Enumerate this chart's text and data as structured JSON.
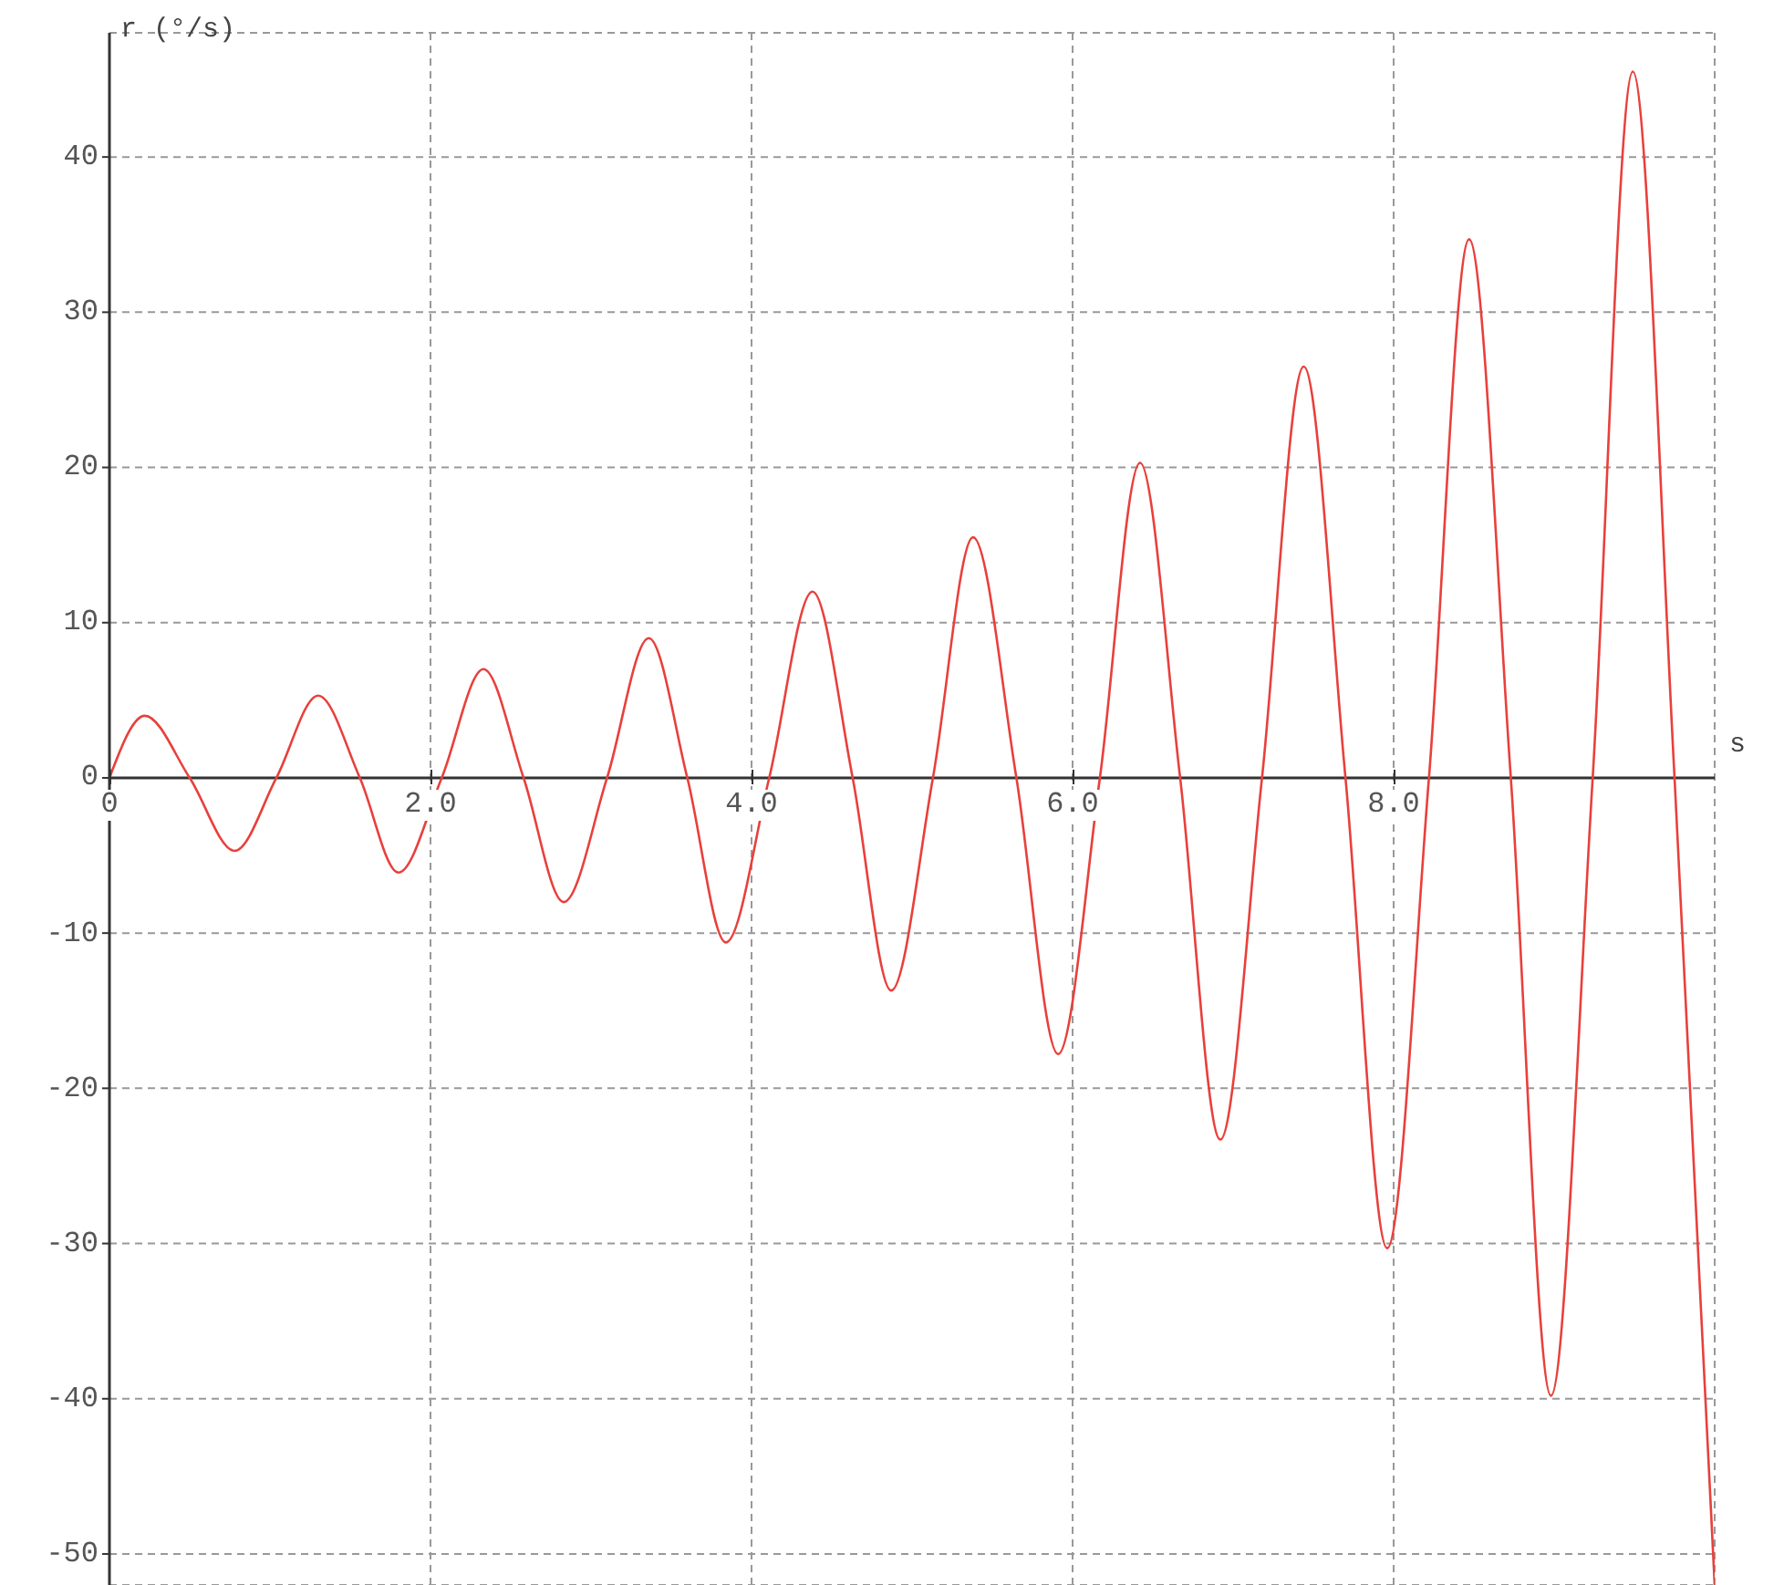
{
  "chart_data": {
    "type": "line",
    "xlabel": "s",
    "ylabel": "r (°/s)",
    "x": [
      0,
      0.22,
      0.5,
      0.78,
      1.04,
      1.3,
      1.56,
      1.8,
      2.07,
      2.33,
      2.58,
      2.83,
      3.1,
      3.36,
      3.6,
      3.84,
      4.11,
      4.38,
      4.63,
      4.87,
      5.13,
      5.38,
      5.65,
      5.91,
      6.17,
      6.42,
      6.67,
      6.92,
      7.18,
      7.44,
      7.7,
      7.96,
      8.22,
      8.47,
      8.73,
      8.98,
      9.24,
      9.49,
      9.75,
      10.0
    ],
    "series": [
      {
        "color": "#e8403c",
        "values": [
          0,
          4,
          0,
          -4.7,
          0,
          5.3,
          0,
          -6.1,
          0,
          7,
          0,
          -8,
          0,
          9,
          0,
          -10.6,
          0,
          12,
          0,
          -13.7,
          0,
          15.5,
          0,
          -17.8,
          0,
          20.3,
          0,
          -23.3,
          0,
          26.5,
          0,
          -30.3,
          0,
          34.7,
          0,
          -39.8,
          0,
          45.5,
          0,
          -52
        ]
      }
    ],
    "xlim": [
      0,
      10
    ],
    "xticks": [
      0,
      {
        "value": 2,
        "label": "2.0"
      },
      {
        "value": 4,
        "label": "4.0"
      },
      {
        "value": 6,
        "label": "6.0"
      },
      {
        "value": 8,
        "label": "8.0"
      }
    ],
    "ylim": [
      -52,
      48
    ],
    "yticks": [
      -50,
      -40,
      -30,
      -20,
      -10,
      0,
      10,
      20,
      30,
      40
    ],
    "grid": true,
    "marker": "none",
    "line_style": "solid",
    "legend": false
  }
}
